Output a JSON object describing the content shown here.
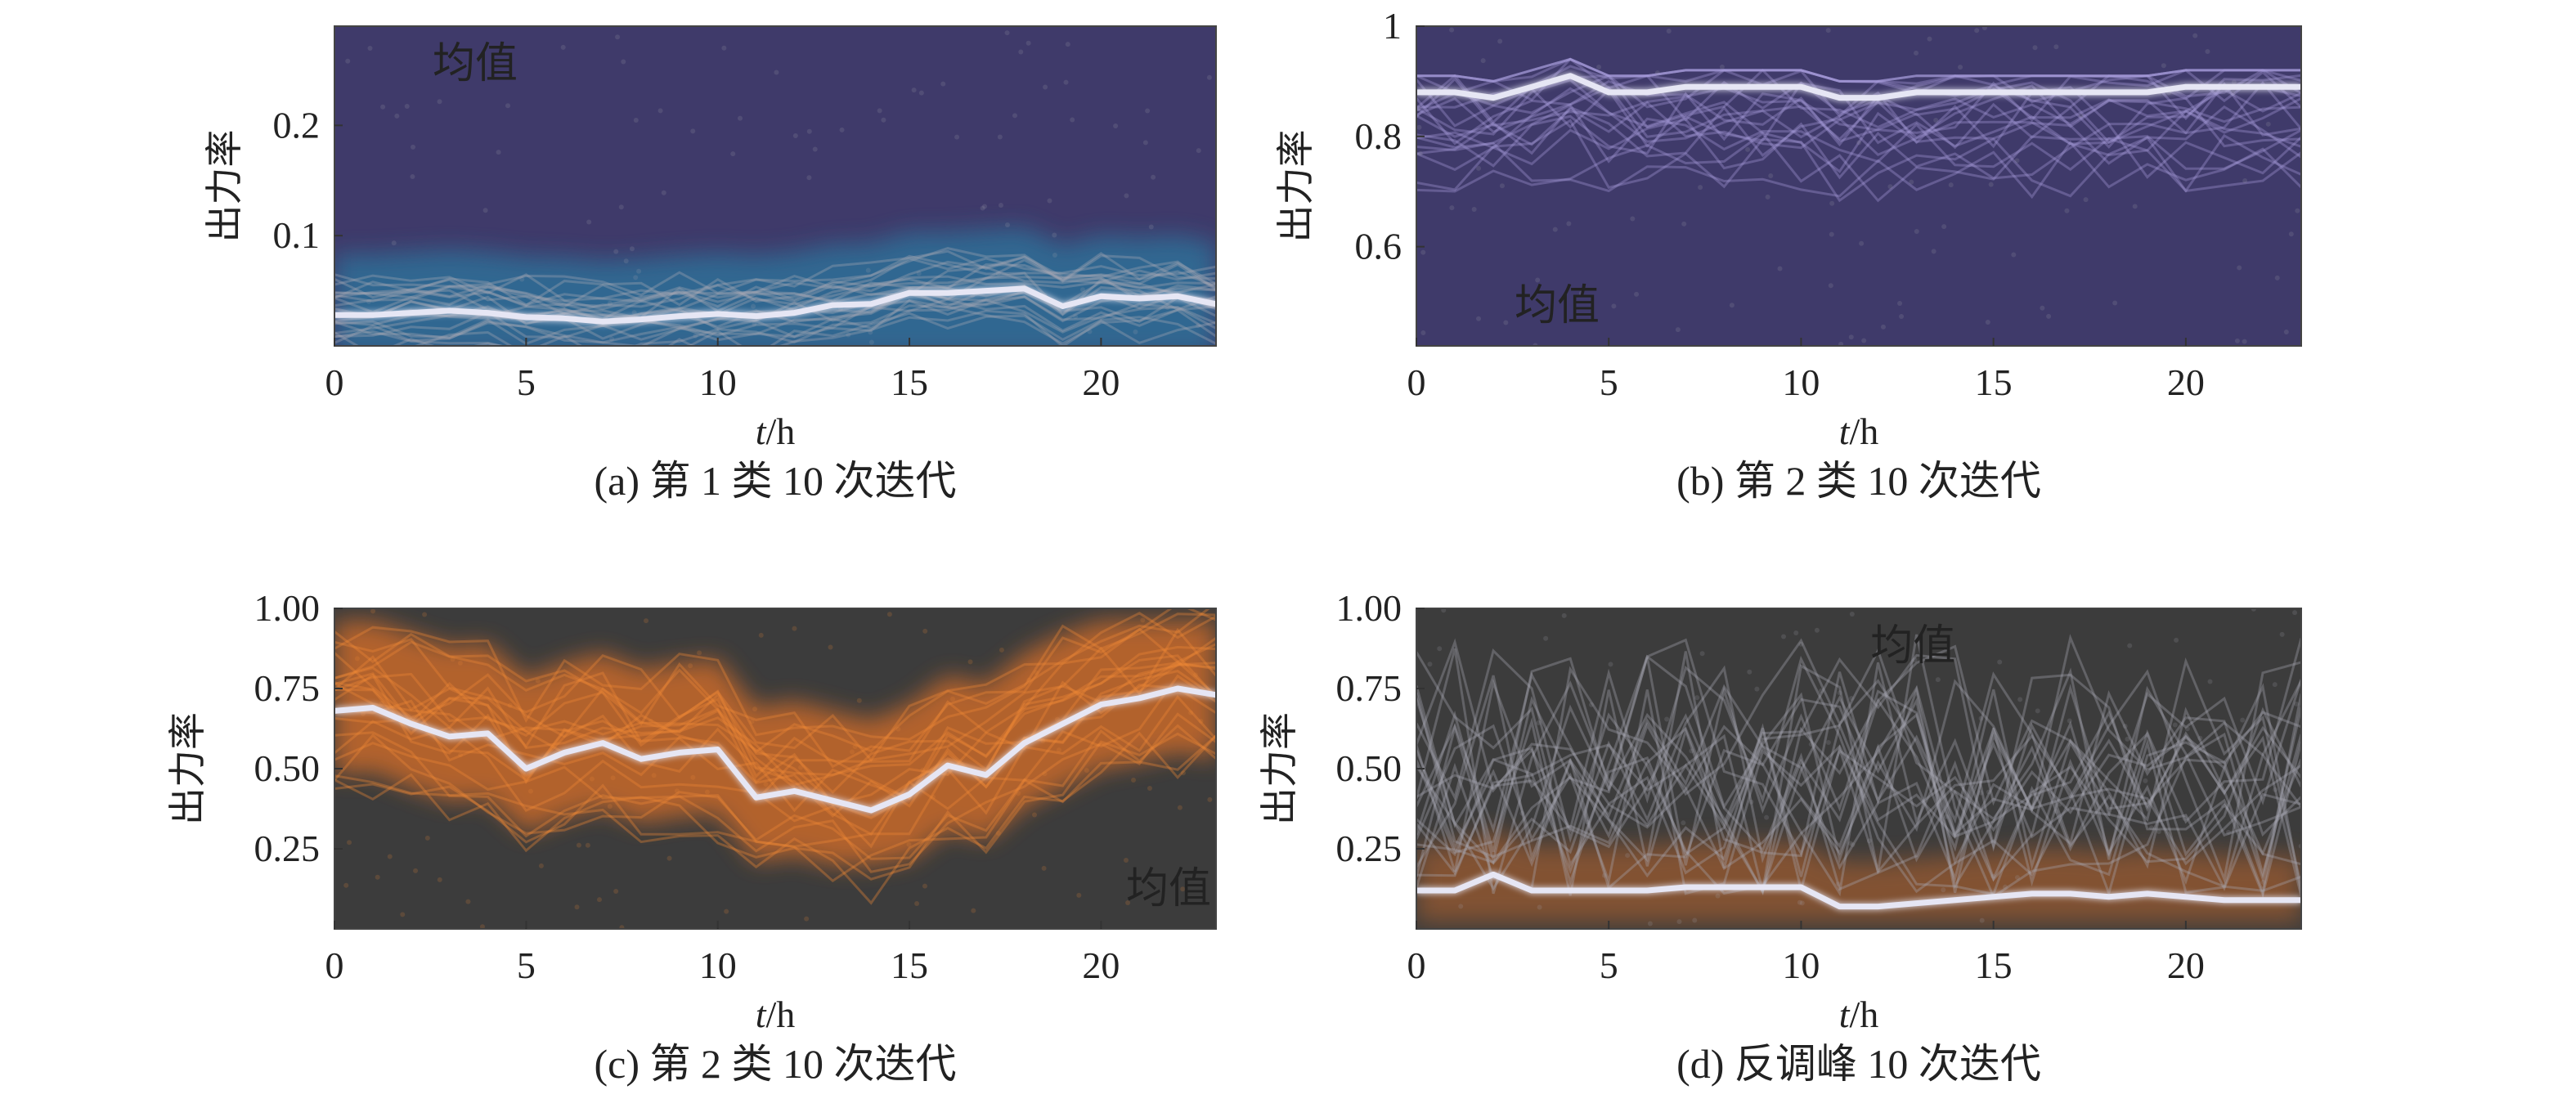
{
  "colors": {
    "purple_bg": "#3f3a6a",
    "dark_bg": "#3c3c3c",
    "blue_band": "#2f6f98",
    "orange_band": "#c7692a",
    "mean_line": "#e6e6f4",
    "trace_gray": "#a9a9b4",
    "trace_orange": "#f08a36",
    "trace_lav": "#a99fdc"
  },
  "chart_data": [
    {
      "type": "line",
      "caption": "(a) 第 1 类 10 次迭代",
      "xlabel_italic": "t",
      "xlabel_rest": "/h",
      "ylabel": "出力率",
      "xlim": [
        0,
        23
      ],
      "ylim": [
        0,
        0.29
      ],
      "xticks": [
        0,
        5,
        10,
        15,
        20
      ],
      "yticks": [
        0.1,
        0.2
      ],
      "legend_label": "均值",
      "legend_loc": "top-left",
      "background": "purple",
      "band": "blue",
      "mean_series": {
        "x": [
          0,
          1,
          2,
          3,
          4,
          5,
          6,
          7,
          8,
          9,
          10,
          11,
          12,
          13,
          14,
          15,
          16,
          17,
          18,
          19,
          20,
          21,
          22,
          23
        ],
        "y": [
          0.028,
          0.028,
          0.03,
          0.032,
          0.03,
          0.026,
          0.025,
          0.022,
          0.024,
          0.027,
          0.029,
          0.027,
          0.03,
          0.037,
          0.038,
          0.048,
          0.048,
          0.05,
          0.052,
          0.036,
          0.045,
          0.043,
          0.045,
          0.038
        ]
      }
    },
    {
      "type": "line",
      "caption": "(b) 第 2 类 10 次迭代",
      "xlabel_italic": "t",
      "xlabel_rest": "/h",
      "ylabel": "出力率",
      "xlim": [
        0,
        23
      ],
      "ylim": [
        0.42,
        1.0
      ],
      "xticks": [
        0,
        5,
        10,
        15,
        20
      ],
      "yticks": [
        0.6,
        0.8,
        1.0
      ],
      "legend_label": "均值",
      "legend_loc": "bottom-left",
      "background": "purple",
      "band": "none",
      "mean_series": {
        "x": [
          0,
          1,
          2,
          3,
          4,
          5,
          6,
          7,
          8,
          9,
          10,
          11,
          12,
          13,
          14,
          15,
          16,
          17,
          18,
          19,
          20,
          21,
          22,
          23
        ],
        "y": [
          0.88,
          0.88,
          0.87,
          0.89,
          0.91,
          0.88,
          0.88,
          0.89,
          0.89,
          0.89,
          0.89,
          0.87,
          0.87,
          0.88,
          0.88,
          0.88,
          0.88,
          0.88,
          0.88,
          0.88,
          0.89,
          0.89,
          0.89,
          0.89
        ]
      }
    },
    {
      "type": "line",
      "caption": "(c) 第 2 类 10 次迭代",
      "xlabel_italic": "t",
      "xlabel_rest": "/h",
      "ylabel": "出力率",
      "xlim": [
        0,
        23
      ],
      "ylim": [
        0,
        1.0
      ],
      "xticks": [
        0,
        5,
        10,
        15,
        20
      ],
      "yticks": [
        0.25,
        0.5,
        0.75,
        1.0
      ],
      "ytick_labels": [
        "0.25",
        "0.50",
        "0.75",
        "1.00"
      ],
      "legend_label": "均值",
      "legend_loc": "bottom-right",
      "background": "dark",
      "band": "orange",
      "mean_series": {
        "x": [
          0,
          1,
          2,
          3,
          4,
          5,
          6,
          7,
          8,
          9,
          10,
          11,
          12,
          13,
          14,
          15,
          16,
          17,
          18,
          19,
          20,
          21,
          22,
          23
        ],
        "y": [
          0.68,
          0.69,
          0.64,
          0.6,
          0.61,
          0.5,
          0.55,
          0.58,
          0.53,
          0.55,
          0.56,
          0.41,
          0.43,
          0.4,
          0.37,
          0.42,
          0.51,
          0.48,
          0.58,
          0.64,
          0.7,
          0.72,
          0.75,
          0.73
        ]
      }
    },
    {
      "type": "line",
      "caption": "(d) 反调峰 10 次迭代",
      "xlabel_italic": "t",
      "xlabel_rest": "/h",
      "ylabel": "出力率",
      "xlim": [
        0,
        23
      ],
      "ylim": [
        0,
        1.0
      ],
      "xticks": [
        0,
        5,
        10,
        15,
        20
      ],
      "yticks": [
        0.25,
        0.5,
        0.75,
        1.0
      ],
      "ytick_labels": [
        "0.25",
        "0.50",
        "0.75",
        "1.00"
      ],
      "legend_label": "均值",
      "legend_loc": "top-center",
      "background": "dark",
      "band": "lower-orange",
      "mean_series": {
        "x": [
          0,
          1,
          2,
          3,
          4,
          5,
          6,
          7,
          8,
          9,
          10,
          11,
          12,
          13,
          14,
          15,
          16,
          17,
          18,
          19,
          20,
          21,
          22,
          23
        ],
        "y": [
          0.12,
          0.12,
          0.17,
          0.12,
          0.12,
          0.12,
          0.12,
          0.13,
          0.13,
          0.13,
          0.13,
          0.07,
          0.07,
          0.08,
          0.09,
          0.1,
          0.11,
          0.11,
          0.1,
          0.11,
          0.1,
          0.09,
          0.09,
          0.09
        ]
      }
    }
  ]
}
